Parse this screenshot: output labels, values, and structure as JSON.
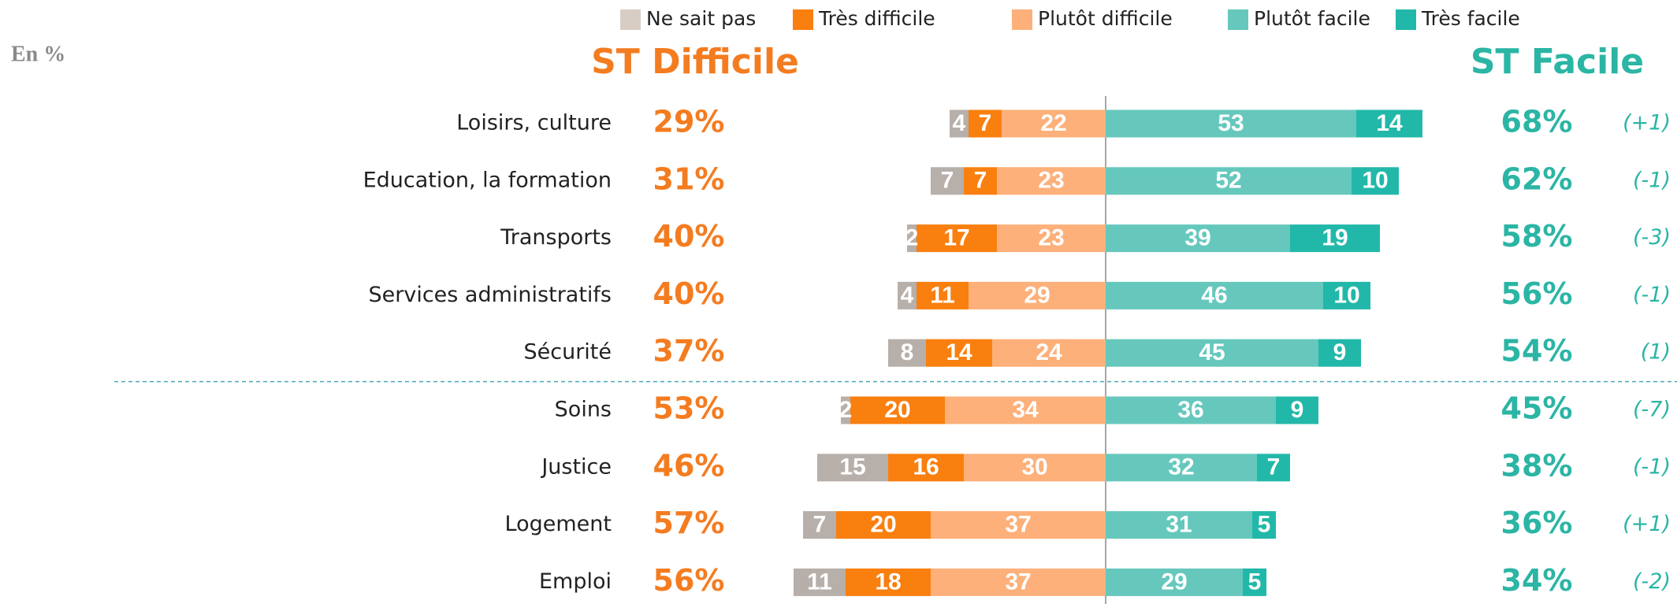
{
  "chart_data": {
    "type": "diverging_bar",
    "unit_label": "En %",
    "categories": [
      "Loisirs, culture",
      "Education, la formation",
      "Transports",
      "Services administratifs",
      "Sécurité",
      "Soins",
      "Justice",
      "Logement",
      "Emploi"
    ],
    "series": [
      {
        "name": "Ne sait pas",
        "color": "#b7afaa",
        "legend_color": "#d8cdc5",
        "side": "left",
        "values": [
          4,
          7,
          2,
          4,
          8,
          2,
          15,
          7,
          11
        ]
      },
      {
        "name": "Très difficile",
        "color": "#f97f0f",
        "side": "left",
        "values": [
          7,
          7,
          17,
          11,
          14,
          20,
          16,
          20,
          18
        ]
      },
      {
        "name": "Plutôt difficile",
        "color": "#fdb07a",
        "side": "left",
        "values": [
          22,
          23,
          23,
          29,
          24,
          34,
          30,
          37,
          37
        ]
      },
      {
        "name": "Plutôt facile",
        "color": "#66c8bd",
        "side": "right",
        "values": [
          53,
          52,
          39,
          46,
          45,
          36,
          32,
          31,
          29
        ]
      },
      {
        "name": "Très facile",
        "color": "#22b8a9",
        "side": "right",
        "values": [
          14,
          10,
          19,
          10,
          9,
          9,
          7,
          5,
          5
        ]
      }
    ],
    "st_difficile": {
      "name": "ST Difficile",
      "color": "#f47c20",
      "values": [
        29,
        31,
        40,
        40,
        37,
        53,
        46,
        57,
        56
      ],
      "value_labels": [
        "29%",
        "31%",
        "40%",
        "40%",
        "37%",
        "53%",
        "46%",
        "57%",
        "56%"
      ]
    },
    "st_facile": {
      "name": "ST Facile",
      "color": "#2bb5a5",
      "values": [
        68,
        62,
        58,
        56,
        54,
        45,
        38,
        36,
        34
      ],
      "value_labels": [
        "68%",
        "62%",
        "58%",
        "56%",
        "54%",
        "45%",
        "38%",
        "36%",
        "34%"
      ]
    },
    "changes": {
      "color": "#2bb5a5",
      "values": [
        1,
        -1,
        -3,
        -1,
        1,
        -7,
        -1,
        1,
        -2
      ],
      "value_labels": [
        "(+1)",
        "(-1)",
        "(-3)",
        "(-1)",
        "(1)",
        "(-7)",
        "(-1)",
        "(+1)",
        "(-2)"
      ]
    },
    "separator_after": 4
  }
}
